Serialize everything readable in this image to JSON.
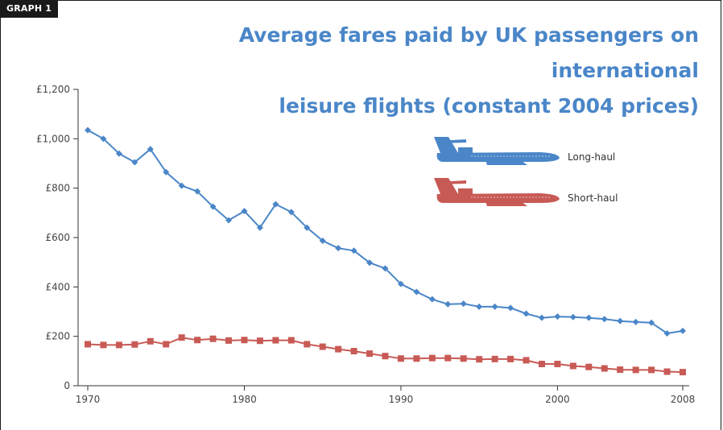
{
  "graph_tag": "GRAPH 1",
  "colors": {
    "long_haul": "#4a86c8",
    "short_haul": "#c85a55",
    "title": "#4a86c8",
    "axis": "#333333"
  },
  "chart_data": {
    "type": "line",
    "title_line1": "Average fares paid by UK passengers on international",
    "title_line2": "leisure flights (constant 2004 prices)",
    "xlabel": "",
    "ylabel": "",
    "xlim": [
      1970,
      2008
    ],
    "ylim": [
      0,
      1200
    ],
    "x_ticks": [
      1970,
      1980,
      1990,
      2000,
      2008
    ],
    "x_tick_labels": [
      "1970",
      "1980",
      "1990",
      "2000",
      "2008"
    ],
    "y_ticks": [
      0,
      200,
      400,
      600,
      800,
      1000,
      1200
    ],
    "y_tick_labels": [
      "0",
      "£200",
      "£400",
      "£600",
      "£800",
      "£1,000",
      "£1,200"
    ],
    "grid": false,
    "legend_position": "top-right",
    "legend_icon": "airplane-icon",
    "x": [
      1970,
      1971,
      1972,
      1973,
      1974,
      1975,
      1976,
      1977,
      1978,
      1979,
      1980,
      1981,
      1982,
      1983,
      1984,
      1985,
      1986,
      1987,
      1988,
      1989,
      1990,
      1991,
      1992,
      1993,
      1994,
      1995,
      1996,
      1997,
      1998,
      1999,
      2000,
      2001,
      2002,
      2003,
      2004,
      2005,
      2006,
      2007,
      2008
    ],
    "series": [
      {
        "name": "Long-haul",
        "marker": "diamond",
        "values": [
          1035,
          1000,
          940,
          905,
          958,
          865,
          810,
          787,
          725,
          670,
          707,
          640,
          735,
          703,
          640,
          587,
          557,
          547,
          498,
          475,
          412,
          380,
          350,
          330,
          332,
          320,
          320,
          315,
          292,
          275,
          280,
          278,
          275,
          270,
          262,
          258,
          255,
          212,
          222
        ]
      },
      {
        "name": "Short-haul",
        "marker": "square",
        "values": [
          168,
          165,
          165,
          167,
          180,
          168,
          195,
          185,
          190,
          183,
          185,
          182,
          184,
          184,
          168,
          158,
          148,
          140,
          130,
          120,
          110,
          110,
          112,
          112,
          110,
          107,
          108,
          108,
          103,
          88,
          88,
          80,
          76,
          70,
          65,
          64,
          64,
          57,
          55
        ]
      }
    ]
  }
}
